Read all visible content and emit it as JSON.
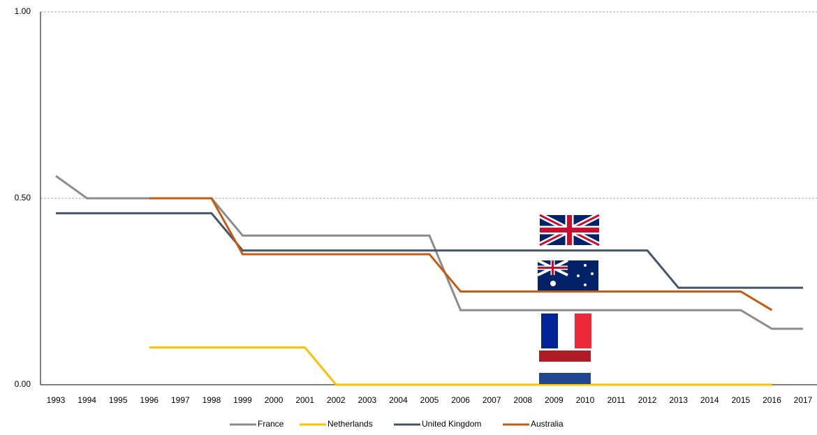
{
  "chart_data": {
    "type": "line",
    "categories": [
      "1993",
      "1994",
      "1995",
      "1996",
      "1997",
      "1998",
      "1999",
      "2000",
      "2001",
      "2002",
      "2003",
      "2004",
      "2005",
      "2006",
      "2007",
      "2008",
      "2009",
      "2010",
      "2011",
      "2012",
      "2013",
      "2014",
      "2015",
      "2016",
      "2017"
    ],
    "series": [
      {
        "name": "France",
        "color": "#8c8c8c",
        "values": [
          0.56,
          0.5,
          0.5,
          0.5,
          0.5,
          0.5,
          0.4,
          0.4,
          0.4,
          0.4,
          0.4,
          0.4,
          0.4,
          0.2,
          0.2,
          0.2,
          0.2,
          0.2,
          0.2,
          0.2,
          0.2,
          0.2,
          0.2,
          0.15,
          0.15
        ]
      },
      {
        "name": "Netherlands",
        "color": "#ffc000",
        "values": [
          null,
          null,
          null,
          0.1,
          0.1,
          0.1,
          0.1,
          0.1,
          0.1,
          0,
          0,
          0,
          0,
          0,
          0,
          0,
          0,
          0,
          0,
          0,
          0,
          0,
          0,
          0,
          null
        ]
      },
      {
        "name": "United Kingdom",
        "color": "#44546a",
        "values": [
          0.46,
          0.46,
          0.46,
          0.46,
          0.46,
          0.46,
          0.36,
          0.36,
          0.36,
          0.36,
          0.36,
          0.36,
          0.36,
          0.36,
          0.36,
          0.36,
          0.36,
          0.36,
          0.36,
          0.36,
          0.26,
          0.26,
          0.26,
          0.26,
          0.26
        ]
      },
      {
        "name": "Australia",
        "color": "#c55a11",
        "values": [
          null,
          null,
          null,
          0.5,
          0.5,
          0.5,
          0.35,
          0.35,
          0.35,
          0.35,
          0.35,
          0.35,
          0.35,
          0.25,
          0.25,
          0.25,
          0.25,
          0.25,
          0.25,
          0.25,
          0.25,
          0.25,
          0.25,
          0.2,
          null
        ]
      }
    ],
    "ylim": [
      0,
      1
    ],
    "yticks": [
      {
        "value": 0,
        "label": "0.00"
      },
      {
        "value": 0.5,
        "label": "0.50"
      },
      {
        "value": 1,
        "label": "1.00"
      }
    ],
    "grid": true,
    "legend": "bottom"
  }
}
